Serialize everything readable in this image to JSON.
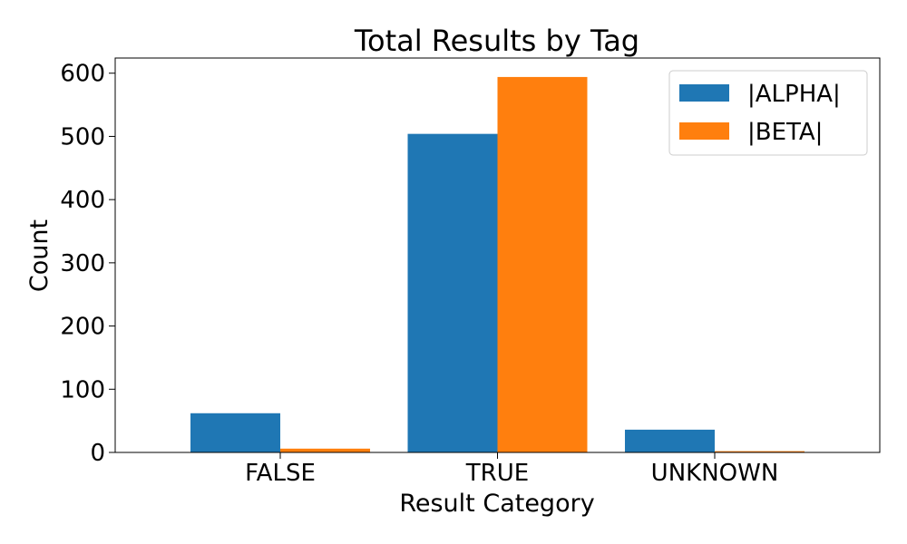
{
  "chart_data": {
    "type": "bar",
    "title": "Total Results by Tag",
    "xlabel": "Result Category",
    "ylabel": "Count",
    "categories": [
      "FALSE",
      "TRUE",
      "UNKNOWN"
    ],
    "series": [
      {
        "name": "|ALPHA|",
        "values": [
          62,
          504,
          36
        ],
        "color": "#1f77b4"
      },
      {
        "name": "|BETA|",
        "values": [
          6,
          594,
          2
        ],
        "color": "#ff7f0e"
      }
    ],
    "ylim": [
      0,
      624
    ],
    "yticks": [
      0,
      100,
      200,
      300,
      400,
      500,
      600
    ],
    "grid": false,
    "legend_position": "top-right"
  }
}
